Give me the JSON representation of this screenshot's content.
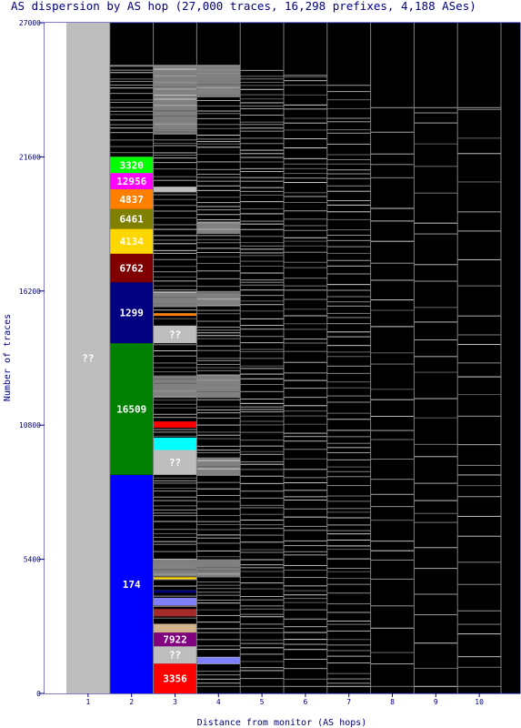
{
  "chart_data": {
    "type": "bar",
    "title": "AS dispersion by AS hop (27,000 traces, 16,298 prefixes, 4,188 ASes)",
    "xlabel": "Distance from monitor (AS hops)",
    "ylabel": "Number of traces",
    "ylim": [
      0,
      27000
    ],
    "yticks": [
      "0",
      "5400",
      "10800",
      "16200",
      "21600",
      "27000"
    ],
    "categories": [
      "1",
      "2",
      "3",
      "4",
      "5",
      "6",
      "7",
      "8",
      "9",
      "10"
    ],
    "trace_totals": [
      27000,
      25300,
      25300,
      25300,
      25100,
      24900,
      24500,
      23600,
      23600,
      23600
    ],
    "segments": [
      {
        "hop": "1",
        "label": "??",
        "from": 0,
        "to": 27000,
        "color": "#bebebe",
        "text_color": "#ffffff"
      },
      {
        "hop": "2",
        "label": "174",
        "from": 0,
        "to": 8800,
        "color": "#0000ff",
        "text_color": "#ffffff"
      },
      {
        "hop": "2",
        "label": "16509",
        "from": 8800,
        "to": 14100,
        "color": "#008000",
        "text_color": "#ffffff"
      },
      {
        "hop": "2",
        "label": "1299",
        "from": 14100,
        "to": 16550,
        "color": "#000080",
        "text_color": "#ffffff"
      },
      {
        "hop": "2",
        "label": "6762",
        "from": 16550,
        "to": 17700,
        "color": "#800000",
        "text_color": "#ffffff"
      },
      {
        "hop": "2",
        "label": "4134",
        "from": 17700,
        "to": 18700,
        "color": "#ffd700",
        "text_color": "#ffffff"
      },
      {
        "hop": "2",
        "label": "6461",
        "from": 18700,
        "to": 19500,
        "color": "#808000",
        "text_color": "#ffffff"
      },
      {
        "hop": "2",
        "label": "4837",
        "from": 19500,
        "to": 20300,
        "color": "#ff8000",
        "text_color": "#ffffff"
      },
      {
        "hop": "2",
        "label": "12956",
        "from": 20300,
        "to": 20950,
        "color": "#ff00ff",
        "text_color": "#ffffff"
      },
      {
        "hop": "2",
        "label": "3320",
        "from": 20950,
        "to": 21600,
        "color": "#00ff00",
        "text_color": "#ffffff"
      },
      {
        "hop": "3",
        "label": "3356",
        "from": 0,
        "to": 1200,
        "color": "#ff0000",
        "text_color": "#ffffff"
      },
      {
        "hop": "3",
        "label": "??",
        "from": 1200,
        "to": 1900,
        "color": "#bebebe",
        "text_color": "#ffffff"
      },
      {
        "hop": "3",
        "label": "7922",
        "from": 1900,
        "to": 2450,
        "color": "#800080",
        "text_color": "#ffffff"
      },
      {
        "hop": "3",
        "label": "",
        "from": 2450,
        "to": 2800,
        "color": "#d2b48c",
        "text_color": "#ffffff"
      },
      {
        "hop": "3",
        "label": "",
        "from": 3100,
        "to": 3400,
        "color": "#a52a2a",
        "text_color": "#ffffff"
      },
      {
        "hop": "3",
        "label": "",
        "from": 3550,
        "to": 3850,
        "color": "#8080ff",
        "text_color": "#ffffff"
      },
      {
        "hop": "3",
        "label": "",
        "from": 4050,
        "to": 4150,
        "color": "#000080",
        "text_color": "#ffffff"
      },
      {
        "hop": "3",
        "label": "",
        "from": 4600,
        "to": 4680,
        "color": "#ffd700",
        "text_color": "#ffffff"
      },
      {
        "hop": "3",
        "label": "??",
        "from": 8800,
        "to": 9800,
        "color": "#bebebe",
        "text_color": "#ffffff"
      },
      {
        "hop": "3",
        "label": "",
        "from": 9800,
        "to": 10300,
        "color": "#00ffff",
        "text_color": "#ffffff"
      },
      {
        "hop": "3",
        "label": "",
        "from": 10700,
        "to": 10950,
        "color": "#ff0000",
        "text_color": "#ffffff"
      },
      {
        "hop": "3",
        "label": "??",
        "from": 14100,
        "to": 14800,
        "color": "#bebebe",
        "text_color": "#ffffff"
      },
      {
        "hop": "3",
        "label": "",
        "from": 15200,
        "to": 15300,
        "color": "#ff8000",
        "text_color": "#ffffff"
      },
      {
        "hop": "3",
        "label": "",
        "from": 20200,
        "to": 20400,
        "color": "#bebebe",
        "text_color": "#ffffff"
      },
      {
        "hop": "4",
        "label": "",
        "from": 1200,
        "to": 1450,
        "color": "#8080ff",
        "text_color": "#ffffff"
      }
    ],
    "grey_bands": [
      {
        "hop": "3",
        "from": 22500,
        "to": 25300
      },
      {
        "hop": "3",
        "from": 15550,
        "to": 16200
      },
      {
        "hop": "3",
        "from": 11900,
        "to": 12800
      },
      {
        "hop": "3",
        "from": 4700,
        "to": 5400
      },
      {
        "hop": "4",
        "from": 24000,
        "to": 25300
      },
      {
        "hop": "4",
        "from": 15600,
        "to": 16200
      },
      {
        "hop": "4",
        "from": 11900,
        "to": 12800
      },
      {
        "hop": "4",
        "from": 8800,
        "to": 9500
      },
      {
        "hop": "4",
        "from": 4700,
        "to": 5400
      },
      {
        "hop": "4",
        "from": 18500,
        "to": 19000
      }
    ]
  }
}
